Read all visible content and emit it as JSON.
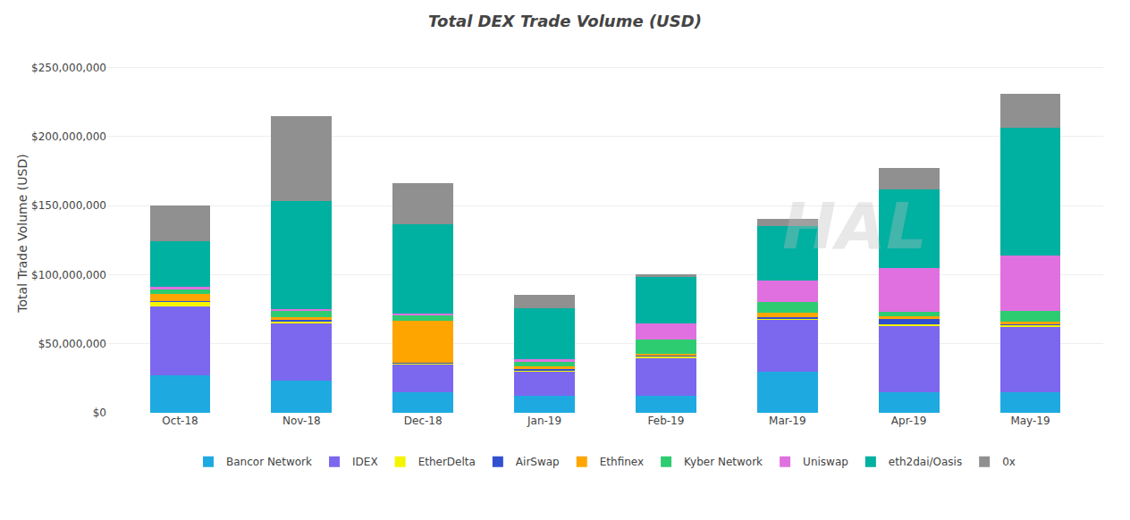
{
  "chart_data": {
    "type": "bar",
    "stacked": true,
    "title": "Total DEX Trade Volume (USD)",
    "ylabel": "Total Trade Volume (USD)",
    "categories": [
      "Oct-18",
      "Nov-18",
      "Dec-18",
      "Jan-19",
      "Feb-19",
      "Mar-19",
      "Apr-19",
      "May-19"
    ],
    "series": [
      {
        "name": "Bancor Network",
        "color": "#1EAAE0",
        "values": [
          27000000,
          23000000,
          15000000,
          12000000,
          12000000,
          30000000,
          15000000,
          15000000
        ]
      },
      {
        "name": "IDEX",
        "color": "#7B68EE",
        "values": [
          50000000,
          42000000,
          20000000,
          18000000,
          28000000,
          37000000,
          48000000,
          47000000
        ]
      },
      {
        "name": "EtherDelta",
        "color": "#F5F500",
        "values": [
          3500000,
          1500000,
          1000000,
          1000000,
          1000000,
          1500000,
          1000000,
          1500000
        ]
      },
      {
        "name": "AirSwap",
        "color": "#3050D0",
        "values": [
          500000,
          500000,
          500000,
          500000,
          500000,
          500000,
          4000000,
          500000
        ]
      },
      {
        "name": "Ethfinex",
        "color": "#FFA500",
        "values": [
          5000000,
          2000000,
          30000000,
          2000000,
          1500000,
          3500000,
          2000000,
          2000000
        ]
      },
      {
        "name": "Kyber Network",
        "color": "#2ECC71",
        "values": [
          3000000,
          5000000,
          4000000,
          4000000,
          10000000,
          8000000,
          3000000,
          8000000
        ]
      },
      {
        "name": "Uniswap",
        "color": "#E070E0",
        "values": [
          2000000,
          1000000,
          1000000,
          1000000,
          12000000,
          15000000,
          32000000,
          40000000
        ]
      },
      {
        "name": "eth2dai/Oasis",
        "color": "#00B0A0",
        "values": [
          33000000,
          78000000,
          65000000,
          37000000,
          33000000,
          40000000,
          57000000,
          92000000
        ]
      },
      {
        "name": "0x",
        "color": "#909090",
        "values": [
          26000000,
          62000000,
          30000000,
          10000000,
          2000000,
          5000000,
          15000000,
          25000000
        ]
      }
    ],
    "ylim": [
      0,
      260000000
    ],
    "yticks": [
      {
        "value": 0,
        "label": "$0"
      },
      {
        "value": 50000000,
        "label": "$50,000,000"
      },
      {
        "value": 100000000,
        "label": "$100,000,000"
      },
      {
        "value": 150000000,
        "label": "$150,000,000"
      },
      {
        "value": 200000000,
        "label": "$200,000,000"
      },
      {
        "value": 250000000,
        "label": "$250,000,000"
      }
    ],
    "grid": true,
    "legend": "bottom",
    "annotations": [
      "HAL"
    ]
  }
}
